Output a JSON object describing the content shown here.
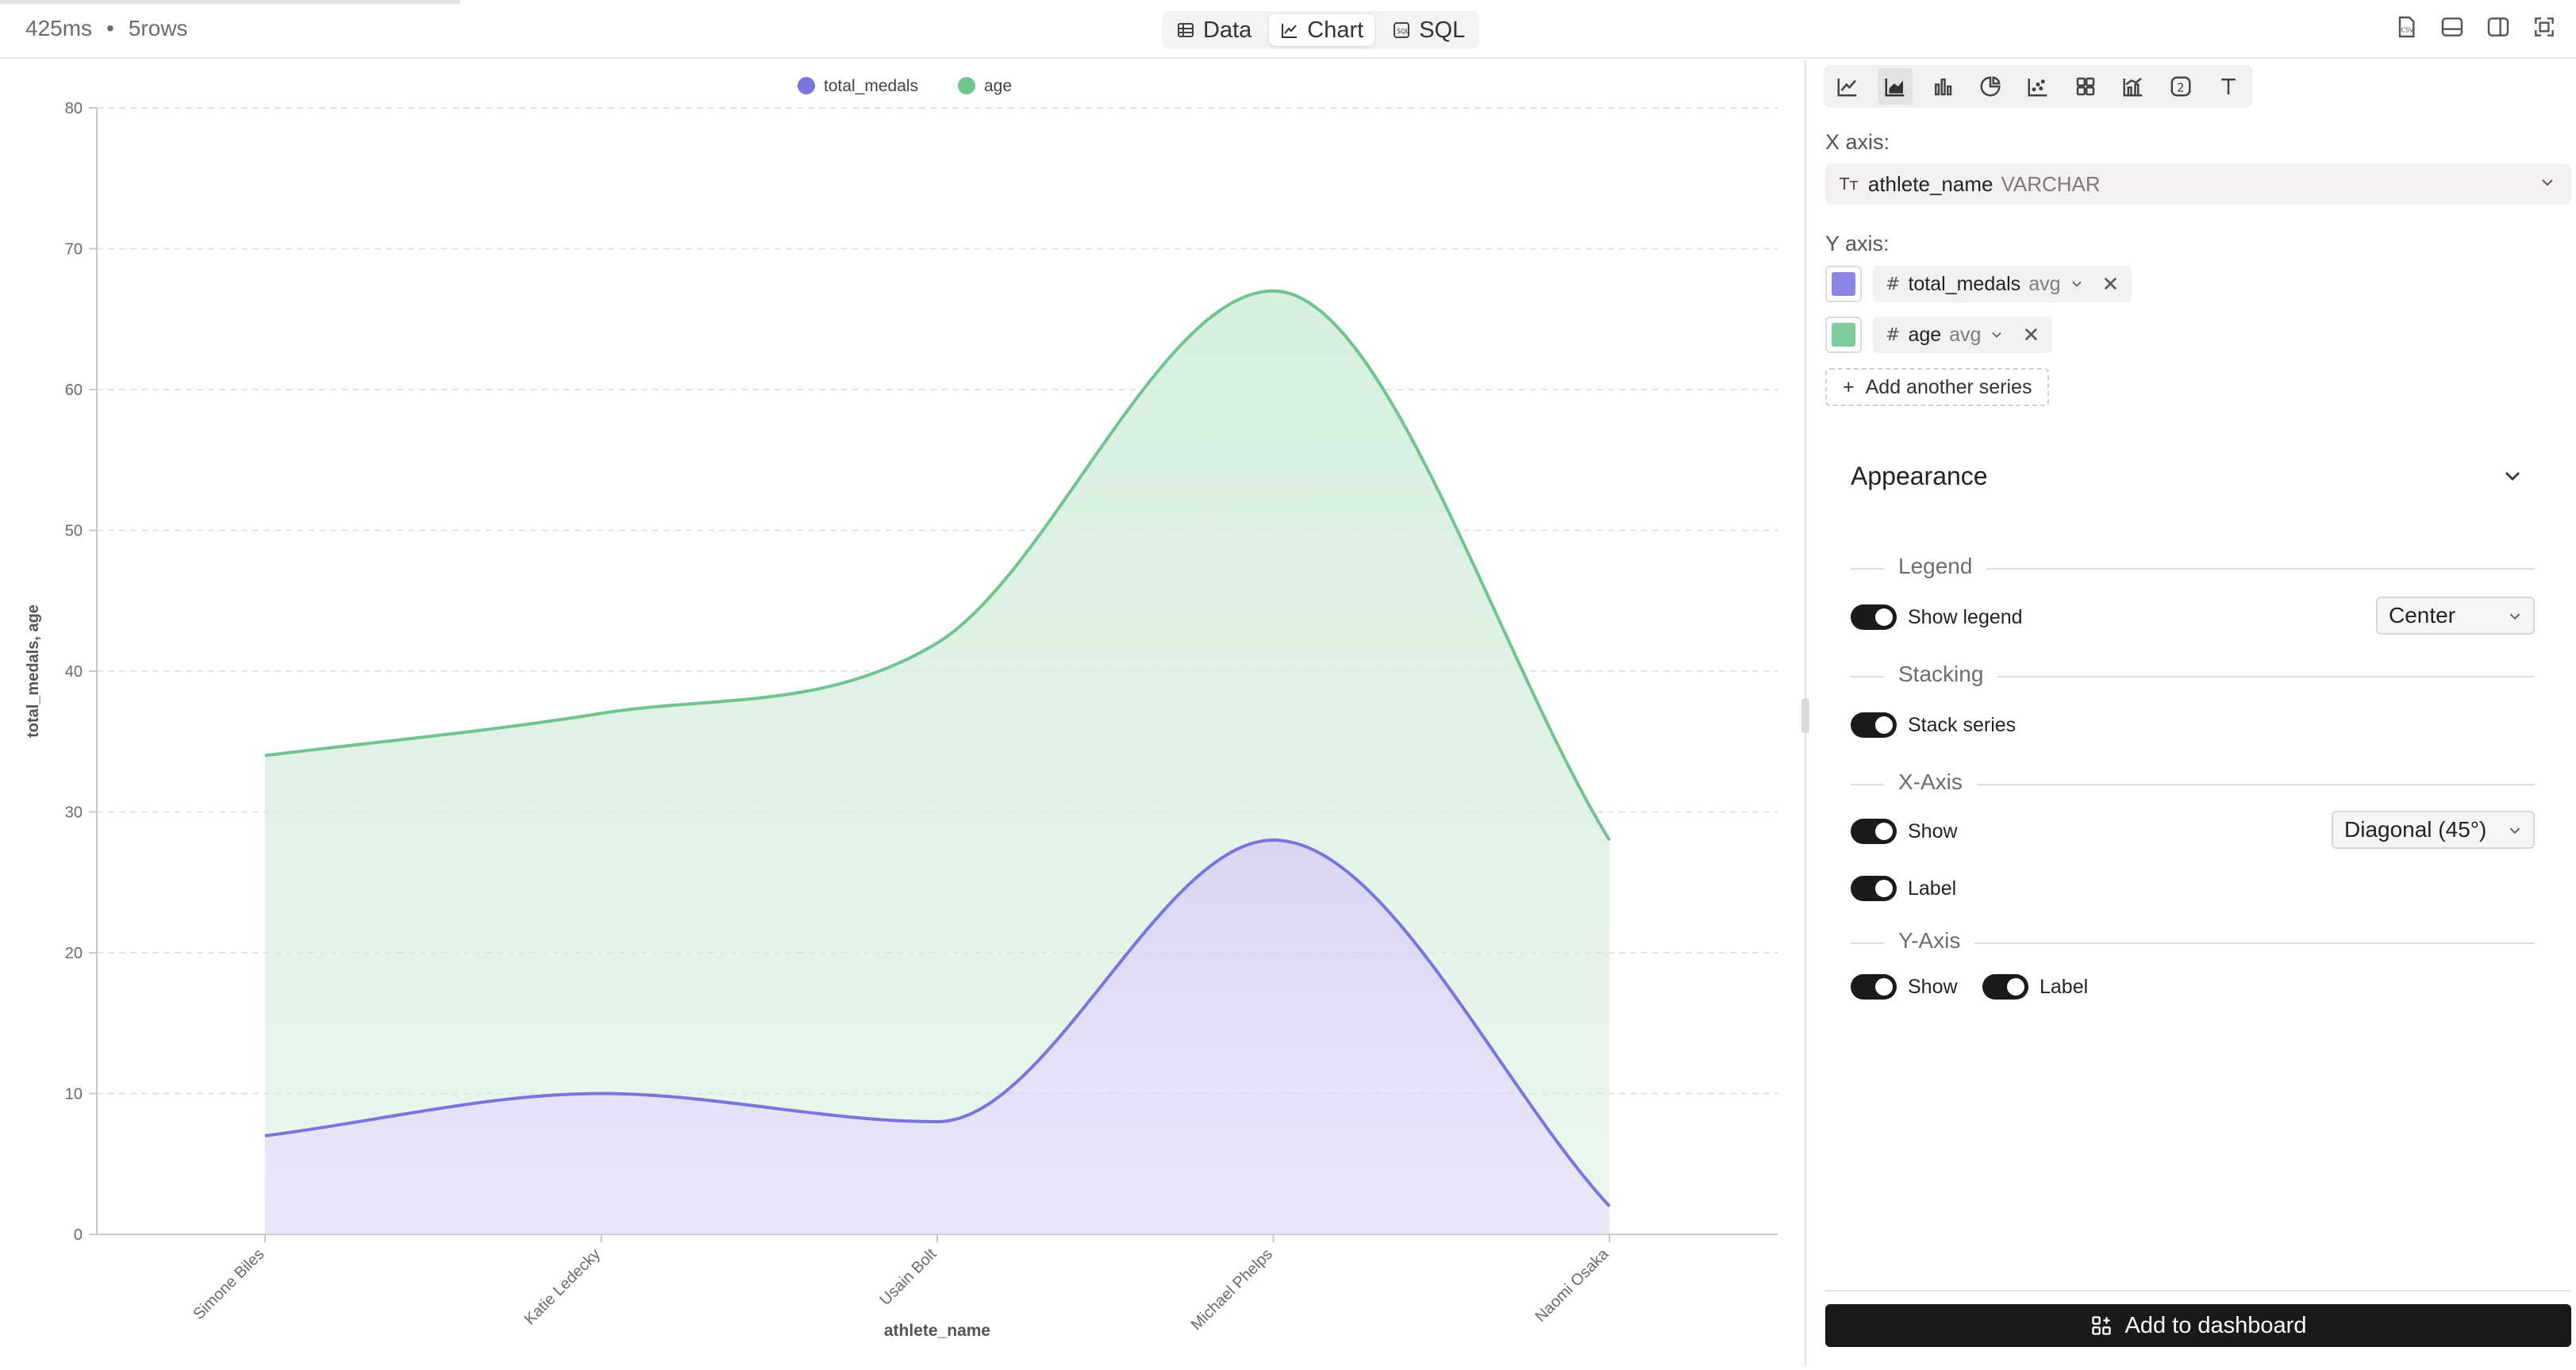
{
  "status": {
    "time": "425ms",
    "separator": "•",
    "rows": "5rows"
  },
  "view_modes": [
    {
      "label": "Data",
      "icon": "table-icon"
    },
    {
      "label": "Chart",
      "icon": "line-chart-icon",
      "active": true
    },
    {
      "label": "SQL",
      "icon": "sql-icon"
    }
  ],
  "top_icons": [
    "csv-download-icon",
    "bottom-panel-icon",
    "side-panel-icon",
    "fullscreen-icon"
  ],
  "config": {
    "x_axis_label": "X axis:",
    "x_axis": {
      "field": "athlete_name",
      "type": "VARCHAR"
    },
    "y_axis_label": "Y axis:",
    "y_series": [
      {
        "field": "total_medals",
        "agg": "avg",
        "color": "#8b85e3"
      },
      {
        "field": "age",
        "agg": "avg",
        "color": "#7fcb9d"
      }
    ],
    "add_series": "Add another series",
    "appearance": "Appearance",
    "legend": {
      "title": "Legend",
      "show_label": "Show legend",
      "position": "Center"
    },
    "stacking": {
      "title": "Stacking",
      "label": "Stack series"
    },
    "x_axis_section": {
      "title": "X-Axis",
      "show": "Show",
      "label": "Label",
      "rotation": "Diagonal (45°)"
    },
    "y_axis_section": {
      "title": "Y-Axis",
      "show": "Show",
      "label": "Label"
    },
    "add_dashboard": "Add to dashboard"
  },
  "chart_data": {
    "type": "area",
    "stacked": true,
    "categories": [
      "Simone Biles",
      "Katie Ledecky",
      "Usain Bolt",
      "Michael Phelps",
      "Naomi Osaka"
    ],
    "series": [
      {
        "name": "total_medals",
        "values": [
          7,
          10,
          8,
          28,
          2
        ],
        "color": "#7b74dc",
        "fill": "#d9d6f3"
      },
      {
        "name": "age",
        "values": [
          27,
          27,
          34,
          39,
          26
        ],
        "color": "#70c48e",
        "fill": "#d7efdf"
      }
    ],
    "stack_totals": [
      34,
      37,
      42,
      67,
      28
    ],
    "xlabel": "athlete_name",
    "ylabel": "total_medals, age",
    "ylim": [
      0,
      80
    ],
    "yticks": [
      0,
      10,
      20,
      30,
      40,
      50,
      60,
      70,
      80
    ],
    "legend": "top-center",
    "grid": true,
    "x_tick_rotation": -45
  }
}
